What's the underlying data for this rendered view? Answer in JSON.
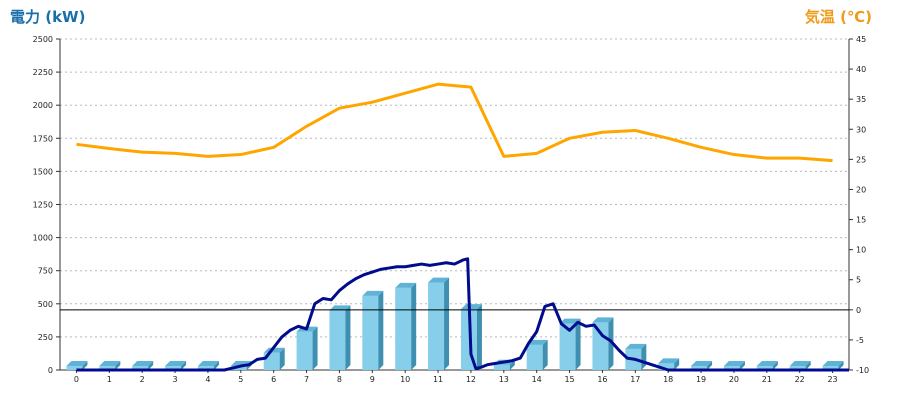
{
  "chart_data": {
    "type": "bar",
    "left_axis_title": "電力 (kW)",
    "right_axis_title": "気温 (℃)",
    "categories": [
      "0",
      "1",
      "2",
      "3",
      "4",
      "5",
      "6",
      "7",
      "8",
      "9",
      "10",
      "11",
      "12",
      "13",
      "14",
      "15",
      "16",
      "17",
      "18",
      "19",
      "20",
      "21",
      "22",
      "23"
    ],
    "y_left": {
      "min": 0,
      "max": 2500,
      "ticks": [
        0,
        250,
        500,
        750,
        1000,
        1250,
        1500,
        1750,
        2000,
        2250,
        2500
      ]
    },
    "y_right": {
      "min": -10,
      "max": 45,
      "ticks": [
        -10,
        -5,
        0,
        5,
        10,
        15,
        20,
        25,
        30,
        35,
        40,
        45
      ]
    },
    "grid": true,
    "reference_line": {
      "axis": "right",
      "value": 0
    },
    "bars": {
      "axis": "left",
      "color": "#87ceeb",
      "values": [
        30,
        30,
        30,
        30,
        30,
        30,
        130,
        290,
        450,
        560,
        620,
        660,
        460,
        40,
        190,
        350,
        360,
        160,
        50,
        30,
        30,
        30,
        30,
        30
      ]
    },
    "power_line": {
      "axis": "left",
      "color": "#000c8c",
      "x": [
        0,
        0.5,
        1,
        1.5,
        2,
        2.5,
        3,
        3.5,
        4,
        4.5,
        5,
        5.25,
        5.5,
        5.75,
        6,
        6.25,
        6.5,
        6.75,
        7,
        7.25,
        7.5,
        7.75,
        8,
        8.25,
        8.5,
        8.75,
        9,
        9.25,
        9.5,
        9.75,
        10,
        10.25,
        10.5,
        10.75,
        11,
        11.25,
        11.5,
        11.75,
        11.9,
        12,
        12.15,
        12.3,
        12.5,
        12.75,
        13,
        13.25,
        13.5,
        13.75,
        14,
        14.25,
        14.5,
        14.75,
        15,
        15.25,
        15.5,
        15.75,
        16,
        16.25,
        16.5,
        16.75,
        17,
        17.25,
        17.5,
        17.75,
        18,
        18.25,
        18.5,
        19,
        19.5,
        20,
        20.5,
        21,
        21.5,
        22,
        22.5,
        23,
        23.5
      ],
      "values": [
        0,
        0,
        0,
        0,
        0,
        0,
        0,
        0,
        0,
        0,
        30,
        40,
        80,
        90,
        170,
        250,
        300,
        330,
        310,
        500,
        540,
        530,
        600,
        650,
        690,
        720,
        740,
        760,
        770,
        780,
        780,
        790,
        800,
        790,
        800,
        810,
        800,
        830,
        840,
        120,
        10,
        20,
        40,
        50,
        60,
        70,
        90,
        200,
        290,
        480,
        500,
        350,
        300,
        360,
        330,
        340,
        260,
        220,
        150,
        90,
        80,
        60,
        40,
        20,
        0,
        0,
        0,
        0,
        0,
        0,
        0,
        0,
        0,
        0,
        0,
        0,
        0
      ]
    },
    "temperature_line": {
      "axis": "right",
      "color": "#ffa500",
      "x": [
        0,
        1,
        2,
        3,
        4,
        5,
        6,
        7,
        8,
        9,
        10,
        11,
        12,
        13,
        14,
        15,
        16,
        17,
        18,
        19,
        20,
        21,
        22,
        23
      ],
      "values": [
        27.5,
        26.8,
        26.2,
        26,
        25.5,
        25.8,
        27,
        30.5,
        33.5,
        34.5,
        36,
        37.5,
        37,
        25.5,
        26,
        28.5,
        29.5,
        29.8,
        28.5,
        27,
        25.8,
        25.2,
        25.2,
        24.8
      ]
    }
  }
}
